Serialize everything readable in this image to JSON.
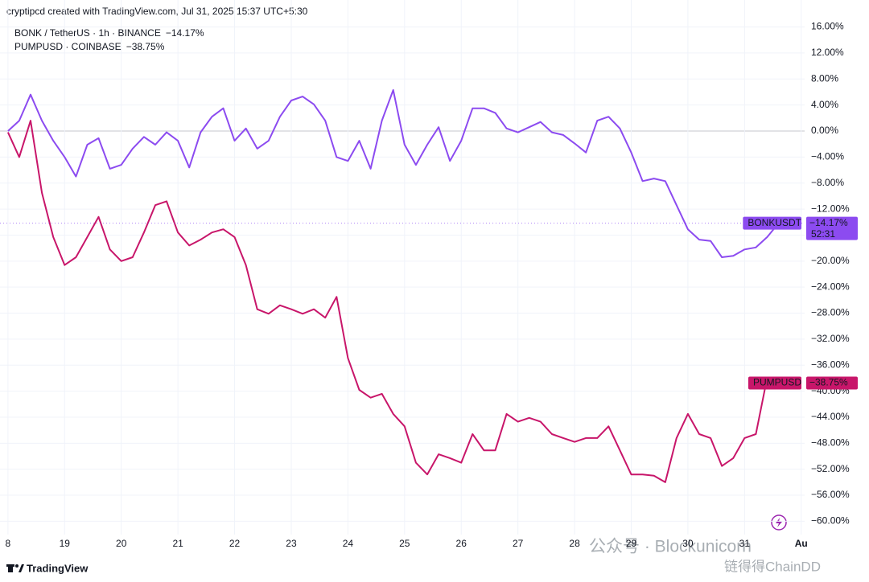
{
  "chart_data": {
    "type": "line",
    "header": "cryptipcd created with TradingView.com, Jul 31, 2025 15:37 UTC+5:30",
    "brand": "TradingView",
    "watermark": "公众号 · Blockunicorn",
    "watermark2": "链得得ChainDD",
    "x": [
      18,
      18.2,
      18.4,
      18.6,
      18.8,
      19,
      19.2,
      19.4,
      19.6,
      19.8,
      20,
      20.2,
      20.4,
      20.6,
      20.8,
      21,
      21.2,
      21.4,
      21.6,
      21.8,
      22,
      22.2,
      22.4,
      22.6,
      22.8,
      23,
      23.2,
      23.4,
      23.6,
      23.8,
      24,
      24.2,
      24.4,
      24.6,
      24.8,
      25,
      25.2,
      25.4,
      25.6,
      25.8,
      26,
      26.2,
      26.4,
      26.6,
      26.8,
      27,
      27.2,
      27.4,
      27.6,
      27.8,
      28,
      28.2,
      28.4,
      28.6,
      28.8,
      29,
      29.2,
      29.4,
      29.6,
      29.8,
      30,
      30.2,
      30.4,
      30.6,
      30.8,
      31,
      31.2,
      31.4,
      31.6
    ],
    "xlim": [
      17.86,
      32.06
    ],
    "xticks": [
      {
        "value": 18,
        "label": "8"
      },
      19,
      20,
      21,
      22,
      23,
      24,
      25,
      26,
      27,
      28,
      29,
      30,
      31,
      {
        "value": 32,
        "label": "Au"
      }
    ],
    "ylim": [
      -62.05,
      20.15
    ],
    "yticks": [
      {
        "value": 16,
        "label": "16.00%"
      },
      {
        "value": 12,
        "label": "12.00%"
      },
      {
        "value": 8,
        "label": "8.00%"
      },
      {
        "value": 4,
        "label": "4.00%"
      },
      {
        "value": 0,
        "label": "0.00%"
      },
      {
        "value": -4,
        "label": "−4.00%"
      },
      {
        "value": -8,
        "label": "−8.00%"
      },
      {
        "value": -12,
        "label": "−12.00%"
      },
      {
        "value": -16,
        "label": "−16.00%"
      },
      {
        "value": -20,
        "label": "−20.00%"
      },
      {
        "value": -24,
        "label": "−24.00%"
      },
      {
        "value": -28,
        "label": "−28.00%"
      },
      {
        "value": -32,
        "label": "−32.00%"
      },
      {
        "value": -36,
        "label": "−36.00%"
      },
      {
        "value": -40,
        "label": "−40.00%"
      },
      {
        "value": -44,
        "label": "−44.00%"
      },
      {
        "value": -48,
        "label": "−48.00%"
      },
      {
        "value": -52,
        "label": "−52.00%"
      },
      {
        "value": -56,
        "label": "−56.00%"
      },
      {
        "value": -60,
        "label": "−60.00%"
      }
    ],
    "grid": true,
    "series": [
      {
        "name": "BONK / TetherUS · 1h · BINANCE",
        "legend_value": "−14.17%",
        "tag": "BONKUSDT",
        "countdown": "52:31",
        "color": "#8c4bf0",
        "values": [
          0,
          1.6,
          5.6,
          1.6,
          -1.5,
          -4.0,
          -7.0,
          -2.1,
          -1.1,
          -5.8,
          -5.2,
          -2.7,
          -0.9,
          -2.1,
          -0.2,
          -1.5,
          -5.6,
          -0.2,
          2.2,
          3.5,
          -1.5,
          0.4,
          -2.7,
          -1.5,
          2.2,
          4.7,
          5.3,
          4.1,
          1.6,
          -4.0,
          -4.6,
          -1.5,
          -5.8,
          1.6,
          6.3,
          -2.1,
          -5.2,
          -2.1,
          0.6,
          -4.6,
          -1.5,
          3.5,
          3.5,
          2.8,
          0.4,
          -0.2,
          0.6,
          1.4,
          -0.2,
          -0.6,
          -1.9,
          -3.3,
          1.6,
          2.2,
          0.4,
          -3.3,
          -7.7,
          -7.3,
          -7.7,
          -11.4,
          -15.1,
          -16.7,
          -16.9,
          -19.4,
          -19.2,
          -18.2,
          -17.9,
          -16.3,
          -14.17
        ]
      },
      {
        "name": "PUMPUSD · COINBASE",
        "legend_value": "−38.75%",
        "tag": "PUMPUSD",
        "color": "#c8166a",
        "values": [
          -0.2,
          -4.0,
          1.6,
          -9.5,
          -16.3,
          -20.6,
          -19.4,
          -16.3,
          -13.2,
          -18.2,
          -20.0,
          -19.4,
          -15.6,
          -11.4,
          -10.8,
          -15.6,
          -17.6,
          -16.7,
          -15.6,
          -15.1,
          -16.3,
          -20.6,
          -27.4,
          -28.1,
          -26.8,
          -27.4,
          -28.1,
          -27.4,
          -28.7,
          -25.5,
          -34.9,
          -39.8,
          -41.0,
          -40.4,
          -43.5,
          -45.4,
          -51.0,
          -52.8,
          -49.7,
          -50.3,
          -51.0,
          -46.6,
          -49.1,
          -49.1,
          -43.5,
          -44.7,
          -44.1,
          -44.7,
          -46.6,
          -47.2,
          -47.8,
          -47.2,
          -47.2,
          -45.4,
          -49.1,
          -52.8,
          -52.8,
          -53.0,
          -54.0,
          -47.2,
          -43.5,
          -46.6,
          -47.2,
          -51.5,
          -50.3,
          -47.2,
          -46.6,
          -37.9,
          -38.75
        ]
      }
    ]
  }
}
